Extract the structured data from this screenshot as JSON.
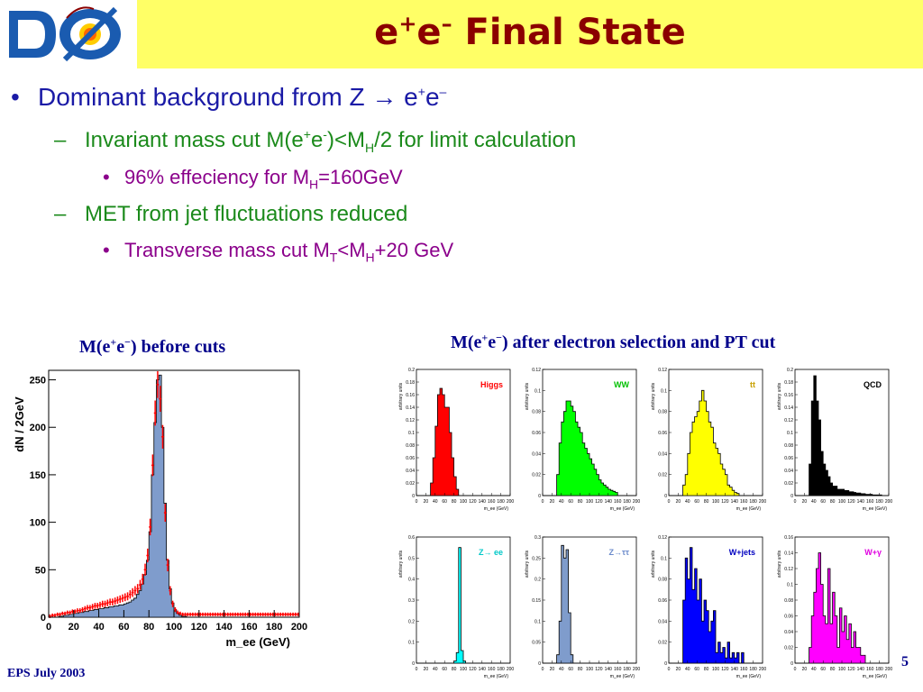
{
  "title": {
    "e1": "e",
    "sup1": "+",
    "e2": "e",
    "sup2": "–",
    "rest": " Final State"
  },
  "logo": {
    "text": "DØ"
  },
  "bullets": {
    "b1": {
      "marker": "•",
      "text": "Dominant background from Z → e",
      "sup1": "+",
      "mid": "e",
      "sup2": "–"
    },
    "b2": {
      "marker": "–",
      "t1": "Invariant mass cut M(e",
      "sup1": "+",
      "t2": "e",
      "sup2": "-",
      "t3": ")<M",
      "sub1": "H",
      "t4": "/2 for limit calculation"
    },
    "b3": {
      "marker": "•",
      "t1": "96% effeciency for M",
      "sub1": "H",
      "t2": "=160GeV"
    },
    "b4": {
      "marker": "–",
      "text": "MET from jet fluctuations reduced"
    },
    "b5": {
      "marker": "•",
      "t1": "Transverse mass cut M",
      "sub1": "T",
      "t2": "<M",
      "sub2": "H",
      "t3": "+20 GeV"
    }
  },
  "captions": {
    "left": {
      "t1": "M(e",
      "s1": "+",
      "t2": "e",
      "s2": "−",
      "t3": ") before cuts"
    },
    "right": {
      "t1": "M(e",
      "s1": "+",
      "t2": "e",
      "s2": "−",
      "t3": ") after electron selection and PT cut"
    }
  },
  "footer": "EPS July 2003",
  "page_number": "5",
  "colors": {
    "accent": "#8b0000",
    "header_bg": "#ffff66",
    "bullet1": "#1a1aa6",
    "bullet2": "#1b8a1b",
    "bullet3": "#8b008b"
  },
  "chart_data": [
    {
      "type": "histogram",
      "ylabel": "dN / 2GeV",
      "xlabel": "m_ee (GeV)",
      "xlim": [
        0,
        200
      ],
      "ylim": [
        0,
        260
      ],
      "xticks": [
        "0",
        "20",
        "40",
        "60",
        "80",
        "100",
        "120",
        "140",
        "160",
        "180",
        "200"
      ],
      "yticks": [
        "0",
        "50",
        "100",
        "150",
        "200",
        "250"
      ],
      "bin_width": 2,
      "mc_fill": "#7f9ccc",
      "data_color": "#ff0000",
      "mc_values": [
        0,
        0,
        0,
        0,
        1,
        1,
        2,
        2,
        3,
        3,
        4,
        4,
        5,
        5,
        6,
        6,
        7,
        7,
        8,
        8,
        9,
        9,
        10,
        10,
        11,
        11,
        12,
        12,
        13,
        13,
        14,
        15,
        16,
        18,
        20,
        24,
        28,
        35,
        45,
        60,
        90,
        150,
        205,
        250,
        255,
        200,
        120,
        60,
        30,
        15,
        8,
        4,
        2,
        1,
        1,
        0,
        0,
        0,
        0,
        0,
        0,
        0,
        0,
        0,
        0,
        0,
        0,
        0,
        0,
        0,
        0,
        0,
        0,
        0,
        0,
        0,
        0,
        0,
        0,
        0,
        0,
        0,
        0,
        0,
        0,
        0,
        0,
        0,
        0,
        0,
        0,
        0,
        0,
        0,
        0,
        0,
        0,
        0,
        0,
        0
      ],
      "data_values": [
        1,
        2,
        2,
        3,
        3,
        4,
        4,
        5,
        5,
        6,
        6,
        7,
        7,
        8,
        9,
        10,
        10,
        11,
        12,
        12,
        13,
        14,
        14,
        15,
        16,
        16,
        17,
        18,
        19,
        20,
        21,
        22,
        24,
        26,
        28,
        30,
        34,
        40,
        50,
        65,
        95,
        160,
        215,
        245,
        230,
        190,
        110,
        55,
        28,
        14,
        8,
        5,
        4,
        3,
        3,
        3,
        3,
        3,
        3,
        3,
        3,
        3,
        3,
        3,
        3,
        3,
        3,
        3,
        3,
        3,
        3,
        3,
        3,
        3,
        3,
        3,
        3,
        3,
        3,
        3,
        3,
        3,
        3,
        3,
        3,
        3,
        3,
        3,
        3,
        3,
        3,
        3,
        3,
        3,
        3,
        3,
        3,
        3,
        3,
        3
      ]
    },
    {
      "type": "histogram",
      "legend": "Higgs",
      "legend_color": "#ff0000",
      "fill": "#ff0000",
      "xlabel": "m_ee (GeV)",
      "ylabel": "arbitrary units",
      "xticks": [
        "0",
        "20",
        "40",
        "60",
        "80",
        "100",
        "120",
        "140",
        "160",
        "180",
        "200"
      ],
      "yticks": [
        "0",
        "0.02",
        "0.04",
        "0.06",
        "0.08",
        "0.1",
        "0.12",
        "0.14",
        "0.16",
        "0.18",
        "0.2"
      ],
      "ymax": 0.2,
      "values": [
        0,
        0,
        0,
        0,
        0,
        0,
        0.02,
        0.06,
        0.11,
        0.16,
        0.17,
        0.16,
        0.14,
        0.14,
        0.1,
        0.06,
        0.03,
        0.01,
        0,
        0,
        0,
        0,
        0,
        0,
        0,
        0,
        0,
        0,
        0,
        0,
        0,
        0,
        0,
        0,
        0,
        0,
        0,
        0,
        0,
        0
      ]
    },
    {
      "type": "histogram",
      "legend": "WW",
      "legend_color": "#00c000",
      "fill": "#00ff00",
      "xlabel": "m_ee (GeV)",
      "ylabel": "arbitrary units",
      "xticks": [
        "0",
        "20",
        "40",
        "60",
        "80",
        "100",
        "120",
        "140",
        "160",
        "180",
        "200"
      ],
      "yticks": [
        "0",
        "0.02",
        "0.04",
        "0.06",
        "0.08",
        "0.1",
        "0.12"
      ],
      "ymax": 0.12,
      "values": [
        0,
        0,
        0,
        0,
        0,
        0,
        0.02,
        0.05,
        0.07,
        0.08,
        0.09,
        0.09,
        0.085,
        0.08,
        0.07,
        0.065,
        0.06,
        0.05,
        0.045,
        0.04,
        0.035,
        0.03,
        0.025,
        0.02,
        0.015,
        0.012,
        0.01,
        0.008,
        0.006,
        0.005,
        0.004,
        0.003,
        0,
        0,
        0,
        0,
        0,
        0,
        0,
        0
      ]
    },
    {
      "type": "histogram",
      "legend": "tt",
      "legend_color": "#c8a000",
      "fill": "#ffff00",
      "xlabel": "m_ee (GeV)",
      "ylabel": "arbitrary units",
      "xticks": [
        "0",
        "20",
        "40",
        "60",
        "80",
        "100",
        "120",
        "140",
        "160",
        "180",
        "200"
      ],
      "yticks": [
        "0",
        "0.02",
        "0.04",
        "0.06",
        "0.08",
        "0.1",
        "0.12"
      ],
      "ymax": 0.12,
      "values": [
        0,
        0,
        0,
        0,
        0,
        0,
        0.01,
        0.02,
        0.04,
        0.06,
        0.07,
        0.075,
        0.08,
        0.09,
        0.1,
        0.09,
        0.08,
        0.07,
        0.065,
        0.05,
        0.045,
        0.04,
        0.03,
        0.025,
        0.02,
        0.01,
        0.008,
        0.005,
        0.003,
        0.002,
        0,
        0,
        0,
        0,
        0,
        0,
        0,
        0,
        0,
        0
      ]
    },
    {
      "type": "histogram",
      "legend": "QCD",
      "legend_color": "#000000",
      "fill": "#000000",
      "xlabel": "m_ee (GeV)",
      "ylabel": "arbitrary units",
      "xticks": [
        "0",
        "20",
        "40",
        "60",
        "80",
        "100",
        "120",
        "140",
        "160",
        "180",
        "200"
      ],
      "yticks": [
        "0",
        "0.02",
        "0.04",
        "0.06",
        "0.08",
        "0.1",
        "0.12",
        "0.14",
        "0.16",
        "0.18",
        "0.2"
      ],
      "ymax": 0.2,
      "values": [
        0,
        0,
        0,
        0,
        0,
        0,
        0.05,
        0.15,
        0.19,
        0.15,
        0.12,
        0.07,
        0.05,
        0.04,
        0.03,
        0.02,
        0.015,
        0.015,
        0.01,
        0.01,
        0.01,
        0.008,
        0.008,
        0.006,
        0.006,
        0.005,
        0.004,
        0.004,
        0.003,
        0.003,
        0.002,
        0.002,
        0.002,
        0.001,
        0.001,
        0.001,
        0.001,
        0,
        0,
        0
      ]
    },
    {
      "type": "histogram",
      "legend": "Z→ ee",
      "legend_color": "#00c8c8",
      "fill": "#00ffff",
      "xlabel": "m_ee (GeV)",
      "ylabel": "arbitrary units",
      "xticks": [
        "0",
        "20",
        "40",
        "60",
        "80",
        "100",
        "120",
        "140",
        "160",
        "180",
        "200"
      ],
      "yticks": [
        "0",
        "0.1",
        "0.2",
        "0.3",
        "0.4",
        "0.5",
        "0.6"
      ],
      "ymax": 0.6,
      "values": [
        0,
        0,
        0,
        0,
        0,
        0,
        0,
        0,
        0,
        0,
        0,
        0,
        0,
        0,
        0,
        0,
        0.01,
        0.05,
        0.55,
        0.06,
        0.01,
        0,
        0,
        0,
        0,
        0,
        0,
        0,
        0,
        0,
        0,
        0,
        0,
        0,
        0,
        0,
        0,
        0,
        0,
        0
      ]
    },
    {
      "type": "histogram",
      "legend": "Z→ττ",
      "legend_color": "#6a8acb",
      "fill": "#7f9ccc",
      "xlabel": "m_ee (GeV)",
      "ylabel": "arbitrary units",
      "xticks": [
        "0",
        "20",
        "40",
        "60",
        "80",
        "100",
        "120",
        "140",
        "160",
        "180",
        "200"
      ],
      "yticks": [
        "0",
        "0.05",
        "0.1",
        "0.15",
        "0.2",
        "0.25",
        "0.3"
      ],
      "ymax": 0.3,
      "values": [
        0,
        0,
        0,
        0,
        0,
        0,
        0.02,
        0.1,
        0.28,
        0.25,
        0.27,
        0.12,
        0.02,
        0,
        0,
        0,
        0,
        0,
        0,
        0,
        0,
        0,
        0,
        0,
        0,
        0,
        0,
        0,
        0,
        0,
        0,
        0,
        0,
        0,
        0,
        0,
        0,
        0,
        0,
        0
      ]
    },
    {
      "type": "histogram",
      "legend": "W+jets",
      "legend_color": "#0000c0",
      "fill": "#0000ff",
      "xlabel": "m_ee (GeV)",
      "ylabel": "arbitrary units",
      "xticks": [
        "0",
        "20",
        "40",
        "60",
        "80",
        "100",
        "120",
        "140",
        "160",
        "180",
        "200"
      ],
      "yticks": [
        "0",
        "0.02",
        "0.04",
        "0.06",
        "0.08",
        "0.1",
        "0.12"
      ],
      "ymax": 0.12,
      "values": [
        0,
        0,
        0,
        0,
        0,
        0,
        0.06,
        0.1,
        0.08,
        0.11,
        0.07,
        0.09,
        0.06,
        0.08,
        0.04,
        0.06,
        0.05,
        0.03,
        0.04,
        0.05,
        0.01,
        0.02,
        0.01,
        0.015,
        0.005,
        0.02,
        0.005,
        0.01,
        0.005,
        0.01,
        0,
        0.01,
        0,
        0,
        0,
        0,
        0,
        0,
        0,
        0
      ]
    },
    {
      "type": "histogram",
      "legend": "W+γ",
      "legend_color": "#e000e0",
      "fill": "#ff00ff",
      "xlabel": "m_ee (GeV)",
      "ylabel": "arbitrary units",
      "xticks": [
        "0",
        "20",
        "40",
        "60",
        "80",
        "100",
        "120",
        "140",
        "160",
        "180",
        "200"
      ],
      "yticks": [
        "0",
        "0.02",
        "0.04",
        "0.06",
        "0.08",
        "0.1",
        "0.12",
        "0.14",
        "0.16"
      ],
      "ymax": 0.16,
      "values": [
        0,
        0,
        0,
        0,
        0,
        0,
        0.02,
        0.06,
        0.09,
        0.12,
        0.14,
        0.1,
        0.06,
        0.05,
        0.12,
        0.05,
        0.09,
        0.06,
        0.02,
        0.07,
        0.04,
        0.06,
        0.03,
        0.05,
        0.02,
        0.04,
        0.02,
        0.02,
        0.01,
        0.01,
        0,
        0,
        0,
        0,
        0,
        0,
        0,
        0,
        0,
        0
      ]
    }
  ]
}
